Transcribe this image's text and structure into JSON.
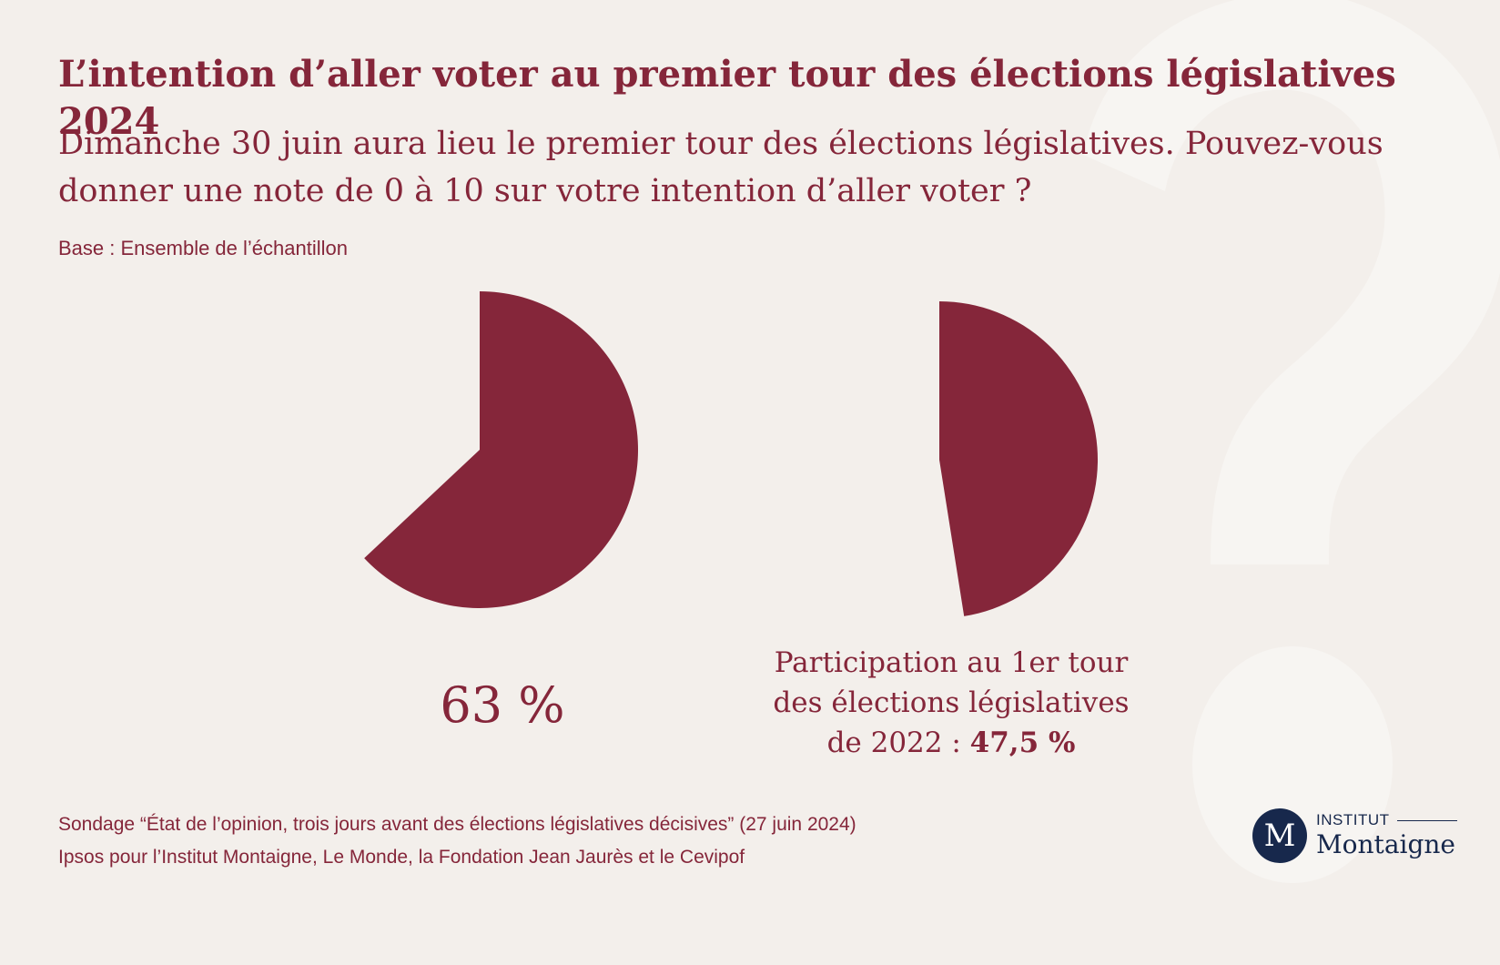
{
  "title": "L’intention d’aller voter au premier tour des élections législatives 2024",
  "subtitle": "Dimanche 30 juin aura lieu le premier tour des élections législatives. Pouvez-vous donner une note de 0 à 10 sur votre intention d’aller voter ?",
  "base": "Base : Ensemble de l’échantillon",
  "colors": {
    "primary": "#85263a",
    "background": "#f3efeb",
    "logo": "#17284c"
  },
  "chart_data": [
    {
      "type": "pie",
      "title": "Intention d’aller voter 2024",
      "values": [
        63
      ],
      "unit": "%",
      "label": "63 %"
    },
    {
      "type": "pie",
      "title": "Participation 2022",
      "values": [
        47.5
      ],
      "unit": "%",
      "label_prefix_line1": "Participation au 1er tour",
      "label_prefix_line2": "des élections législatives",
      "label_prefix_line3": "de 2022 :",
      "label_value": "47,5 %"
    }
  ],
  "source": {
    "line1": "Sondage “État de l’opinion, trois jours avant des élections législatives décisives” (27 juin 2024)",
    "line2": "Ipsos pour l’Institut Montaigne, Le Monde, la Fondation Jean Jaurès et le Cevipof"
  },
  "logo": {
    "mark": "M",
    "top": "INSTITUT",
    "bottom": "Montaigne"
  }
}
